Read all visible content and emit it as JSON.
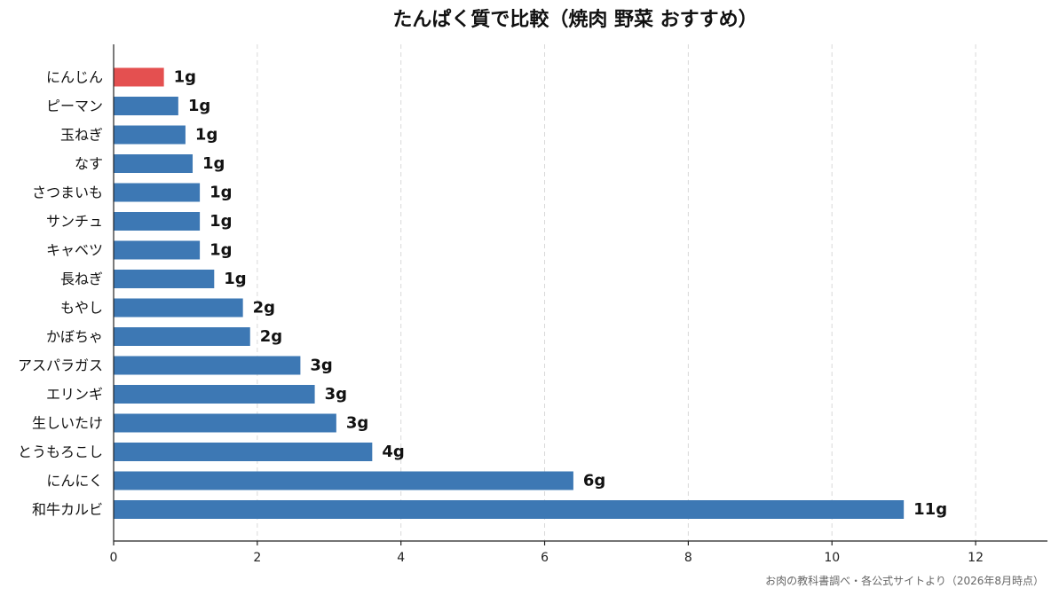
{
  "chart_data": {
    "type": "bar",
    "orientation": "horizontal",
    "title": "たんぱく質で比較（焼肉 野菜 おすすめ）",
    "categories": [
      "にんじん",
      "ピーマン",
      "玉ねぎ",
      "なす",
      "さつまいも",
      "サンチュ",
      "キャベツ",
      "長ねぎ",
      "もやし",
      "かぼちゃ",
      "アスパラガス",
      "エリンギ",
      "生しいたけ",
      "とうもろこし",
      "にんにく",
      "和牛カルビ"
    ],
    "values": [
      0.7,
      0.9,
      1.0,
      1.1,
      1.2,
      1.2,
      1.2,
      1.4,
      1.8,
      1.9,
      2.6,
      2.8,
      3.1,
      3.6,
      6.4,
      11.0
    ],
    "value_labels": [
      "1g",
      "1g",
      "1g",
      "1g",
      "1g",
      "1g",
      "1g",
      "1g",
      "2g",
      "2g",
      "3g",
      "3g",
      "3g",
      "4g",
      "6g",
      "11g"
    ],
    "highlight_index": 0,
    "xlim": [
      0,
      13
    ],
    "xticks": [
      0,
      2,
      4,
      6,
      8,
      10,
      12
    ],
    "xlabel": "",
    "ylabel": "",
    "grid": "vertical dashed",
    "colors": {
      "bar": "#3d78b4",
      "highlight": "#e45050"
    },
    "source": "お肉の教科書調べ・各公式サイトより（2026年8月時点）"
  }
}
